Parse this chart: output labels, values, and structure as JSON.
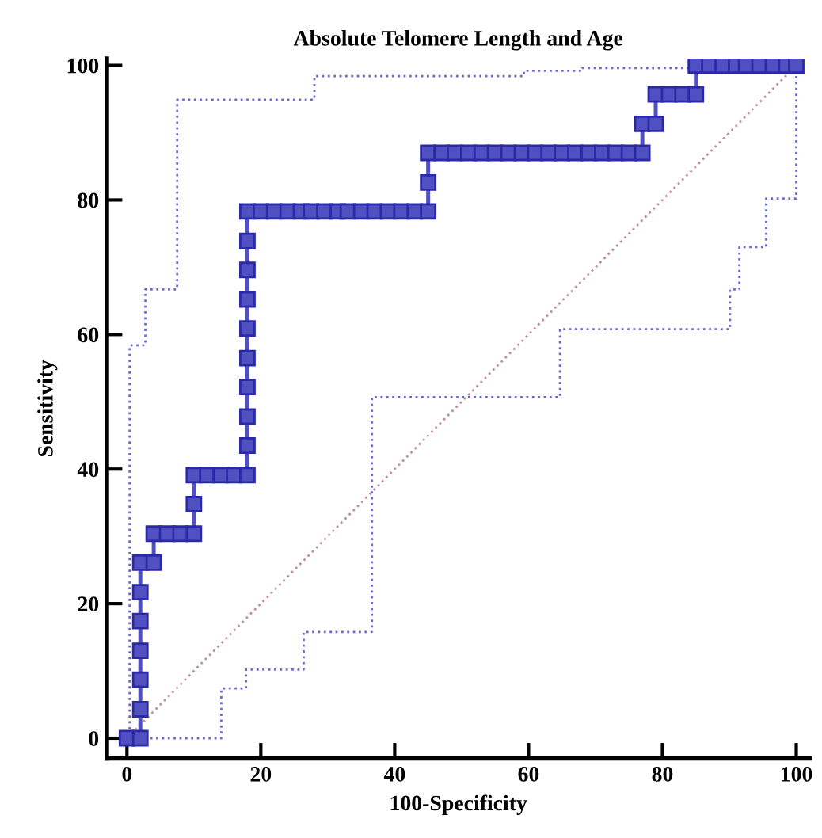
{
  "chart_data": {
    "type": "line",
    "title": "Absolute Telomere Length and Age",
    "xlabel": "100-Specificity",
    "ylabel": "Sensitivity",
    "xlim": [
      -3,
      102
    ],
    "ylim": [
      -3,
      101
    ],
    "xticks": [
      0,
      20,
      40,
      60,
      80,
      100
    ],
    "yticks": [
      0,
      20,
      40,
      60,
      80,
      100
    ],
    "grid": false,
    "legend": false,
    "series": [
      {
        "type": "step",
        "color": "#6a6ac8",
        "line_style": "dotted",
        "x": [
          0,
          0.4,
          2.75,
          7.5,
          28,
          59.3,
          68,
          85,
          100
        ],
        "values": [
          0,
          58.4,
          66.7,
          94.9,
          98.4,
          99.2,
          99.6,
          100,
          100
        ]
      },
      {
        "type": "step",
        "color": "#6a6ac8",
        "line_style": "dotted",
        "x": [
          0,
          14.1,
          17.8,
          26.4,
          36.6,
          64.7,
          90.1,
          91.5,
          95.5,
          100
        ],
        "values": [
          0,
          7.4,
          10.2,
          15.8,
          50.7,
          60.8,
          66.7,
          73,
          80.2,
          100
        ]
      },
      {
        "color": "#c090a8",
        "line_style": "dotted",
        "x": [
          0,
          100
        ],
        "values": [
          0,
          100
        ]
      },
      {
        "color": "#5050c0",
        "line_style": "solid",
        "marker": "square",
        "x": [
          0,
          2,
          2,
          2,
          2,
          2,
          2,
          2,
          4,
          4,
          6,
          8,
          10,
          10,
          10,
          12,
          14,
          16,
          18,
          18,
          18,
          18,
          18,
          18,
          18,
          18,
          18,
          18,
          20,
          22,
          24,
          26,
          27.5,
          29.5,
          31.5,
          33,
          35,
          37,
          39,
          41,
          43,
          45,
          45,
          45,
          47,
          49,
          51,
          53,
          55,
          57,
          59,
          61,
          63,
          65,
          67,
          69,
          71,
          73,
          75,
          77,
          77,
          79,
          79,
          81,
          83,
          85,
          85,
          87,
          89,
          91,
          92.5,
          94.5,
          96.5,
          98.5,
          100
        ],
        "values": [
          0,
          0,
          4.3,
          8.7,
          13,
          17.4,
          21.7,
          26.1,
          26.1,
          30.4,
          30.4,
          30.4,
          30.4,
          34.8,
          39.1,
          39.1,
          39.1,
          39.1,
          39.1,
          43.5,
          47.8,
          52.2,
          56.5,
          60.9,
          65.2,
          69.6,
          73.9,
          78.3,
          78.3,
          78.3,
          78.3,
          78.3,
          78.3,
          78.3,
          78.3,
          78.3,
          78.3,
          78.3,
          78.3,
          78.3,
          78.3,
          78.3,
          82.6,
          87,
          87,
          87,
          87,
          87,
          87,
          87,
          87,
          87,
          87,
          87,
          87,
          87,
          87,
          87,
          87,
          87,
          91.3,
          91.3,
          95.7,
          95.7,
          95.7,
          95.7,
          100,
          100,
          100,
          100,
          100,
          100,
          100,
          100,
          100
        ]
      }
    ]
  }
}
